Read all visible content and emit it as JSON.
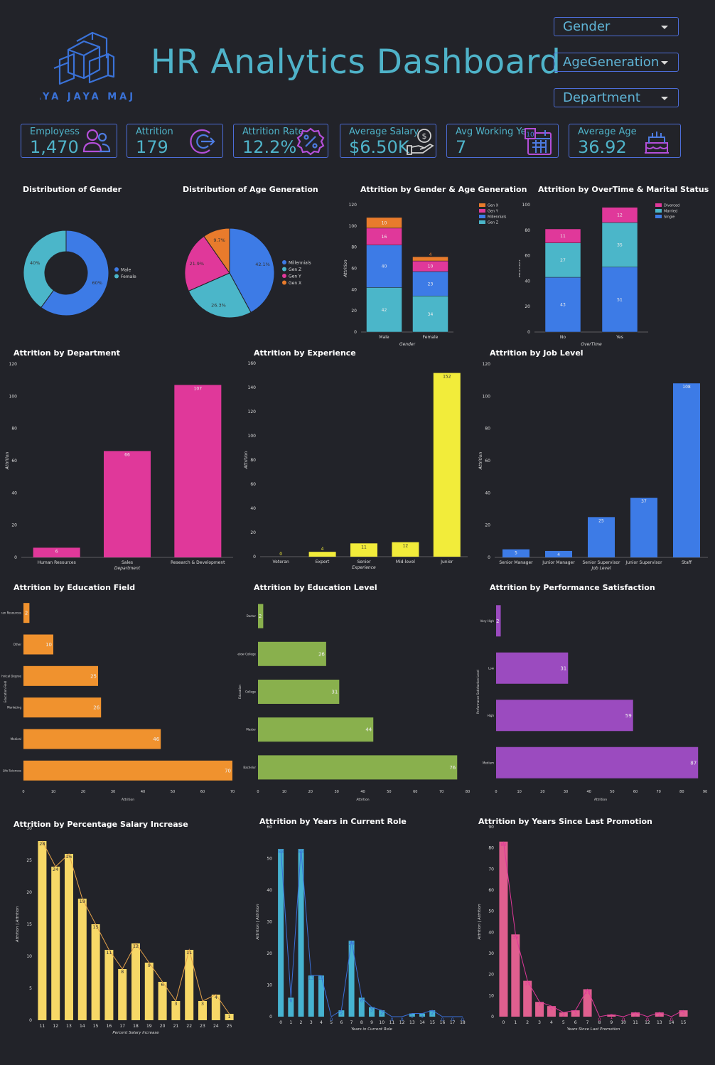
{
  "header": {
    "title": "HR  Analytics Dashboard",
    "logo_text": "JAYA JAYA MAJU"
  },
  "filters": [
    {
      "label": "Gender"
    },
    {
      "label": "AgeGeneration"
    },
    {
      "label": "Department"
    }
  ],
  "kpis": [
    {
      "label": "Employess",
      "value": "1,470",
      "icon": "people-icon"
    },
    {
      "label": "Attrition",
      "value": "179",
      "icon": "exit-arrow-icon"
    },
    {
      "label": "Attrition Rate",
      "value": "12.2%",
      "icon": "percent-badge-icon"
    },
    {
      "label": "Average Salary",
      "value": "$6.50K",
      "icon": "hand-dollar-icon"
    },
    {
      "label": "Avg Working Year",
      "value": "7",
      "icon": "calendar-icon"
    },
    {
      "label": "Average Age",
      "value": "36.92",
      "icon": "cake-icon"
    }
  ],
  "colors": {
    "background": "#222329",
    "accent": "#4fb3c9",
    "border": "#4d6dd8",
    "male": "#3d7be6",
    "female": "#4bb6c9",
    "millennials": "#3d7be6",
    "genz": "#4bb6c9",
    "geny": "#e0389a",
    "genx": "#e87b2c",
    "pink": "#e0389a",
    "yellow": "#f2ec3a",
    "blue": "#3d7be6",
    "orange": "#f0922e",
    "green": "#89b04d",
    "purple": "#9b4bbf",
    "lightyellow": "#f7d867",
    "teal": "#46b3d1",
    "rose": "#e05f8f"
  },
  "chart_data": [
    {
      "id": "gender",
      "type": "pie",
      "title": "Distribution of Gender",
      "categories": [
        "Male",
        "Female"
      ],
      "values": [
        60,
        40
      ],
      "labels": [
        "60%",
        "40%"
      ],
      "donut": true,
      "legend": "right"
    },
    {
      "id": "agegen",
      "type": "pie",
      "title": "Distribution of Age Generation",
      "categories": [
        "Millennials",
        "Gen Z",
        "Gen Y",
        "Gen X"
      ],
      "values": [
        42.1,
        26.3,
        21.9,
        9.7
      ],
      "labels": [
        "42.1%",
        "26.3%",
        "21.9%",
        "9.7%"
      ],
      "legend": "right"
    },
    {
      "id": "gender_age",
      "type": "bar",
      "stacked": true,
      "title": "Attrition by Gender &  Age Generation",
      "xlabel": "Gender",
      "ylabel": "Attrition",
      "categories": [
        "Male",
        "Female"
      ],
      "ylim": [
        0,
        120
      ],
      "yticks": [
        0,
        20,
        40,
        60,
        80,
        100,
        120
      ],
      "series": [
        {
          "name": "Gen Z",
          "values": [
            42,
            34
          ]
        },
        {
          "name": "Millennials",
          "values": [
            40,
            23
          ]
        },
        {
          "name": "Gen Y",
          "values": [
            16,
            10
          ]
        },
        {
          "name": "Gen X",
          "values": [
            10,
            4
          ]
        }
      ],
      "legend": "top-right"
    },
    {
      "id": "overtime",
      "type": "bar",
      "stacked": true,
      "title": "Attrition by OverTime & Marital Status",
      "xlabel": "OverTime",
      "ylabel": "Attrition",
      "categories": [
        "No",
        "Yes"
      ],
      "ylim": [
        0,
        100
      ],
      "yticks": [
        0,
        20,
        40,
        60,
        80,
        100
      ],
      "series": [
        {
          "name": "Single",
          "values": [
            43,
            51
          ]
        },
        {
          "name": "Married",
          "values": [
            27,
            35
          ]
        },
        {
          "name": "Divorced",
          "values": [
            11,
            12
          ]
        }
      ],
      "legend": "top-right"
    },
    {
      "id": "dept",
      "type": "bar",
      "title": "Attrition by Department",
      "xlabel": "Department",
      "ylabel": "Attrition",
      "categories": [
        "Human Resources",
        "Sales",
        "Research & Development"
      ],
      "values": [
        6,
        66,
        107
      ],
      "ylim": [
        0,
        120
      ],
      "yticks": [
        0,
        20,
        40,
        60,
        80,
        100,
        120
      ]
    },
    {
      "id": "exp",
      "type": "bar",
      "title": "Attrition by Experience",
      "xlabel": "Experience",
      "ylabel": "Attrition",
      "categories": [
        "Veteran",
        "Expert",
        "Senior",
        "Mid-level",
        "Junior"
      ],
      "values": [
        0,
        4,
        11,
        12,
        152
      ],
      "ylim": [
        0,
        160
      ],
      "yticks": [
        0,
        20,
        40,
        60,
        80,
        100,
        120,
        140,
        160
      ]
    },
    {
      "id": "joblevel",
      "type": "bar",
      "title": "Attrition by Job Level",
      "xlabel": "Job Level",
      "ylabel": "Attrition",
      "categories": [
        "Senior Manager",
        "Junior Manager",
        "Senior Supervisor",
        "Junior Supervisor",
        "Staff"
      ],
      "values": [
        5,
        4,
        25,
        37,
        108
      ],
      "ylim": [
        0,
        120
      ],
      "yticks": [
        0,
        20,
        40,
        60,
        80,
        100,
        120
      ]
    },
    {
      "id": "edufield",
      "type": "hbar",
      "title": "Attrition by Education Field",
      "xlabel": "Attrition",
      "ylabel": "Education Field",
      "categories": [
        "Human Resources",
        "Other",
        "Technical Degree",
        "Marketing",
        "Medical",
        "Life Sciences"
      ],
      "values": [
        2,
        10,
        25,
        26,
        46,
        70
      ],
      "xlim": [
        0,
        70
      ],
      "xticks": [
        0,
        10,
        20,
        30,
        40,
        50,
        60,
        70
      ]
    },
    {
      "id": "edulevel",
      "type": "hbar",
      "title": "Attrition by Education Level",
      "xlabel": "Attrition",
      "ylabel": "Education",
      "categories": [
        "Doctor",
        "Below College",
        "College",
        "Master",
        "Bachelor"
      ],
      "values": [
        2,
        26,
        31,
        44,
        76
      ],
      "xlim": [
        0,
        80
      ],
      "xticks": [
        0,
        10,
        20,
        30,
        40,
        50,
        60,
        70,
        80
      ]
    },
    {
      "id": "perfsat",
      "type": "hbar",
      "title": "Attrition by Performance Satisfaction",
      "xlabel": "Attrition",
      "ylabel": "Performance Satisfaction Level",
      "categories": [
        "Very High",
        "Low",
        "High",
        "Medium"
      ],
      "values": [
        2,
        31,
        59,
        87
      ],
      "xlim": [
        0,
        90
      ],
      "xticks": [
        0,
        10,
        20,
        30,
        40,
        50,
        60,
        70,
        80,
        90
      ]
    },
    {
      "id": "salary",
      "type": "bar+line",
      "title": "Attrition by Percentage Salary Increase",
      "xlabel": "Percent Salary Increase",
      "ylabel": "Attrition | Attrition",
      "categories": [
        "11",
        "12",
        "13",
        "14",
        "15",
        "16",
        "17",
        "18",
        "19",
        "20",
        "21",
        "22",
        "23",
        "24",
        "25"
      ],
      "values": [
        28,
        24,
        26,
        19,
        15,
        11,
        8,
        12,
        9,
        6,
        3,
        11,
        3,
        4,
        1
      ],
      "ylim": [
        0,
        30
      ],
      "yticks": [
        0,
        5,
        10,
        15,
        20,
        25,
        30
      ]
    },
    {
      "id": "role",
      "type": "bar+line",
      "title": "Attrition by Years in Current Role",
      "xlabel": "Years in Current Role",
      "ylabel": "Attrition | Attrition",
      "categories": [
        "0",
        "1",
        "2",
        "3",
        "4",
        "5",
        "6",
        "7",
        "8",
        "9",
        "10",
        "11",
        "12",
        "13",
        "14",
        "15",
        "16",
        "17",
        "18"
      ],
      "values": [
        53,
        6,
        53,
        13,
        13,
        0,
        2,
        24,
        6,
        3,
        2,
        0,
        0,
        1,
        1,
        2,
        0,
        0,
        0
      ],
      "ylim": [
        0,
        60
      ],
      "yticks": [
        0,
        10,
        20,
        30,
        40,
        50,
        60
      ]
    },
    {
      "id": "promo",
      "type": "bar+line",
      "title": "Attrition by Years Since Last Promotion",
      "xlabel": "Years Since Last Promotion",
      "ylabel": "Attrition | Attrition",
      "categories": [
        "0",
        "1",
        "2",
        "3",
        "4",
        "5",
        "6",
        "7",
        "8",
        "9",
        "10",
        "11",
        "12",
        "13",
        "14",
        "15"
      ],
      "values": [
        83,
        39,
        17,
        7,
        5,
        2,
        3,
        13,
        0,
        1,
        0,
        2,
        0,
        2,
        0,
        3
      ],
      "ylim": [
        0,
        90
      ],
      "yticks": [
        0,
        10,
        20,
        30,
        40,
        50,
        60,
        70,
        80,
        90
      ]
    }
  ]
}
